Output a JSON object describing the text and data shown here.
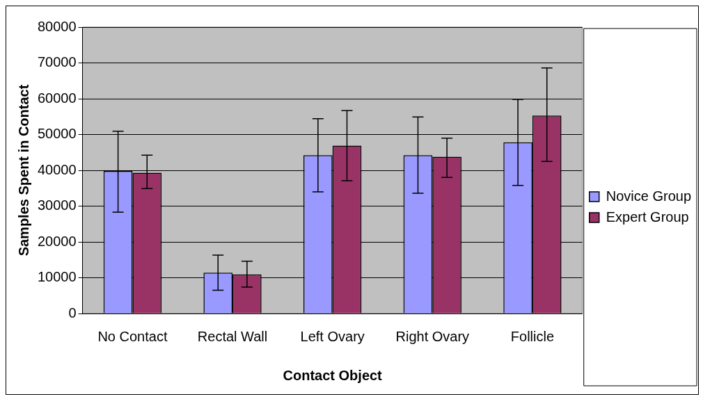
{
  "chart_data": {
    "type": "bar",
    "xlabel": "Contact Object",
    "ylabel": "Samples Spent in Contact",
    "categories": [
      "No Contact",
      "Rectal Wall",
      "Left Ovary",
      "Right Ovary",
      "Follicle"
    ],
    "series": [
      {
        "name": "Novice Group",
        "color": "#9999ff",
        "values": [
          39800,
          11400,
          44200,
          44200,
          47800
        ],
        "errors": [
          [
            28300,
            50900
          ],
          [
            6500,
            16300
          ],
          [
            34000,
            54400
          ],
          [
            33600,
            54900
          ],
          [
            35800,
            59800
          ]
        ]
      },
      {
        "name": "Expert Group",
        "color": "#993366",
        "values": [
          39300,
          10900,
          46900,
          43800,
          55300
        ],
        "errors": [
          [
            34900,
            44200
          ],
          [
            7400,
            14600
          ],
          [
            37100,
            56700
          ],
          [
            38000,
            49000
          ],
          [
            42500,
            68600
          ]
        ]
      }
    ],
    "ylim": [
      0,
      80000
    ],
    "yticks": [
      0,
      10000,
      20000,
      30000,
      40000,
      50000,
      60000,
      70000,
      80000
    ],
    "grid": "y",
    "legend": "right"
  }
}
